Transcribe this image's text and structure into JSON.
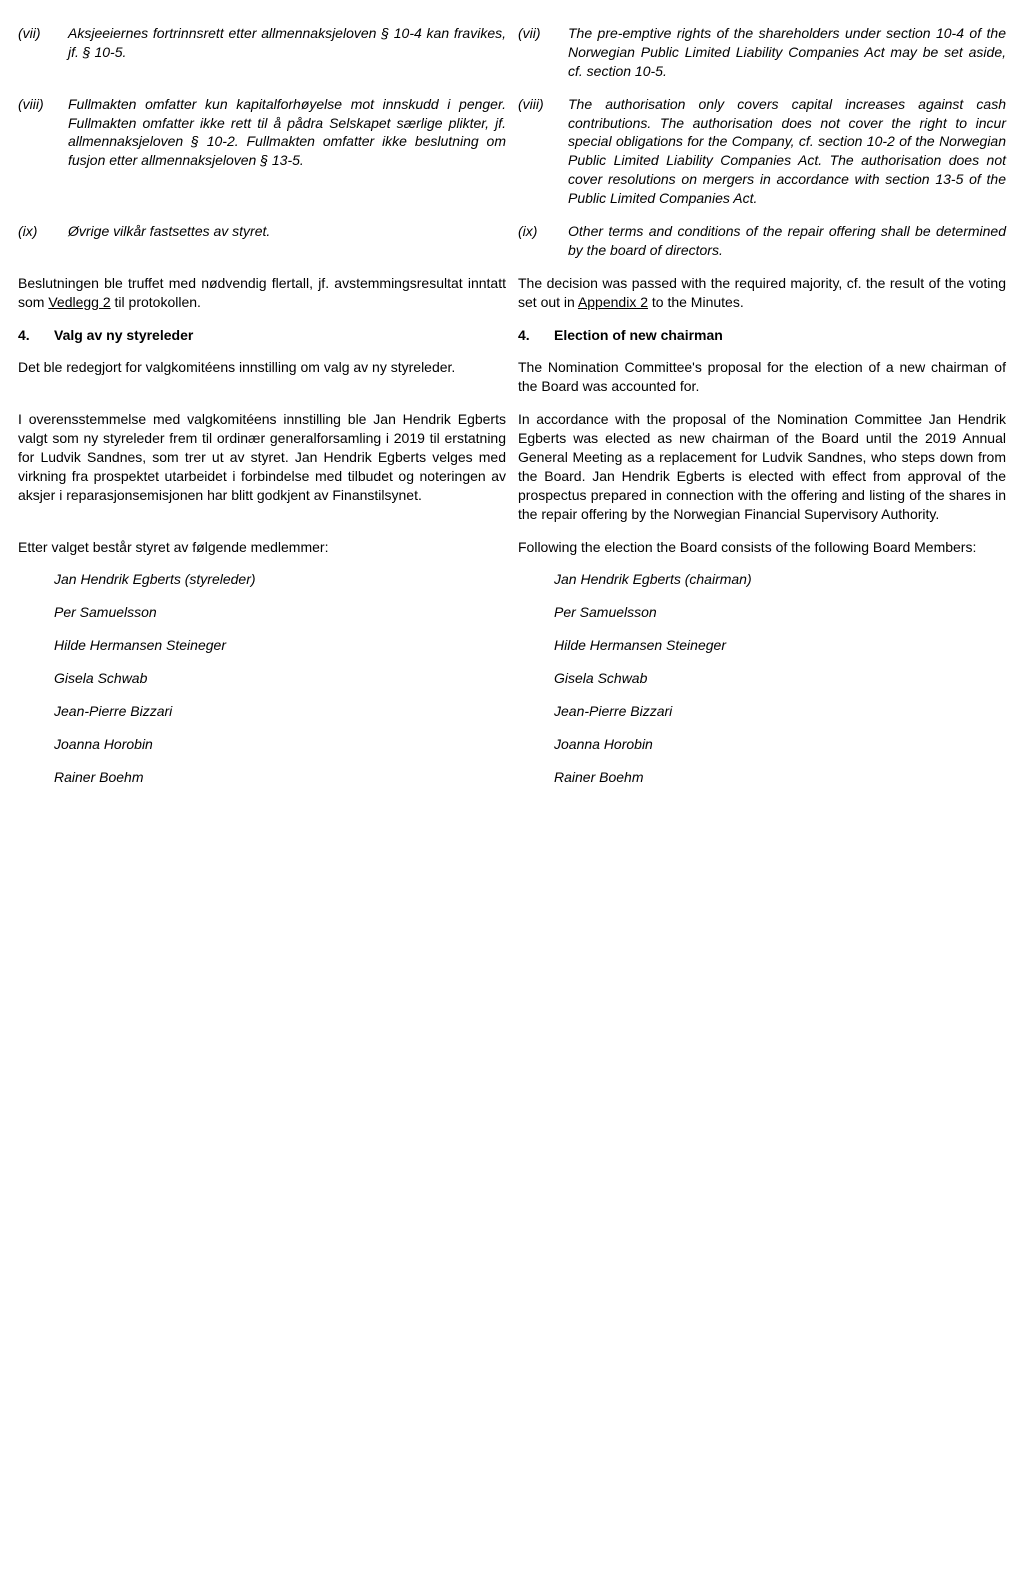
{
  "clause_vii": {
    "left_marker": "(vii)",
    "left_text": "Aksjeeiernes fortrinnsrett etter allmennaksjeloven § 10-4 kan fravikes, jf. § 10-5.",
    "right_marker": "(vii)",
    "right_text": "The pre-emptive rights of the shareholders under section 10-4 of the Norwegian Public Limited Liability Companies Act may be set aside, cf. section 10-5."
  },
  "clause_viii": {
    "left_marker": "(viii)",
    "left_text": "Fullmakten omfatter kun kapitalforhøyelse mot innskudd i penger. Fullmakten omfatter ikke rett til å pådra Selskapet særlige plikter, jf. allmennaksjeloven § 10-2. Fullmakten omfatter ikke beslutning om fusjon etter allmennaksjeloven § 13-5.",
    "right_marker": "(viii)",
    "right_text": "The authorisation only covers capital increases against cash contributions. The authorisation does not cover the right to incur special obligations for the Company, cf. section 10-2 of the Norwegian Public Limited Liability Companies Act. The authorisation does not cover resolutions on mergers in accordance with section 13-5 of the Public Limited Companies Act."
  },
  "clause_ix": {
    "left_marker": "(ix)",
    "left_text": "Øvrige vilkår fastsettes av styret.",
    "right_marker": "(ix)",
    "right_text": "Other terms and conditions of the repair offering shall be determined by the board of directors."
  },
  "decision": {
    "left_pre": "Beslutningen ble truffet med nødvendig flertall, jf. avstemmingsresultat inntatt som ",
    "left_link": "Vedlegg 2",
    "left_post": " til protokollen.",
    "right_pre": "The decision was passed with the required majority, cf. the result of the voting set out in ",
    "right_link": "Appendix 2",
    "right_post": " to the Minutes."
  },
  "heading4": {
    "left_num": "4.",
    "left_text": "Valg av ny styreleder",
    "right_num": "4.",
    "right_text": "Election of new chairman"
  },
  "nom_para": {
    "left": "Det ble redegjort for valgkomitéens innstilling om valg av ny styreleder.",
    "right": "The Nomination Committee's proposal for the election of a new chairman of the Board was accounted for."
  },
  "elect_para": {
    "left": "I overensstemmelse med valgkomitéens innstilling ble Jan Hendrik Egberts valgt som ny styreleder frem til ordinær generalforsamling i 2019 til erstatning for Ludvik Sandnes, som trer ut av styret. Jan Hendrik Egberts velges med virkning fra prospektet utarbeidet i forbindelse med tilbudet og noteringen av aksjer i reparasjonsemisjonen har blitt godkjent av Finanstilsynet.",
    "right": "In accordance with the proposal of the Nomination Committee Jan Hendrik Egberts was elected as new chairman of the Board until the 2019 Annual General Meeting as a replacement for Ludvik Sandnes, who steps down from the Board. Jan Hendrik Egberts is elected with effect from approval of the prospectus prepared in connection with the offering and listing of the shares in the repair offering by the Norwegian Financial Supervisory Authority."
  },
  "after_para": {
    "left": "Etter valget består styret av følgende medlemmer:",
    "right": "Following the election the Board consists of the following Board Members:"
  },
  "members": {
    "left": [
      "Jan Hendrik Egberts (styreleder)",
      "Per Samuelsson",
      "Hilde Hermansen Steineger",
      "Gisela Schwab",
      "Jean-Pierre Bizzari",
      "Joanna Horobin",
      "Rainer Boehm"
    ],
    "right": [
      "Jan Hendrik Egberts (chairman)",
      "Per Samuelsson",
      "Hilde Hermansen Steineger",
      "Gisela Schwab",
      "Jean-Pierre Bizzari",
      "Joanna Horobin",
      "Rainer Boehm"
    ]
  }
}
